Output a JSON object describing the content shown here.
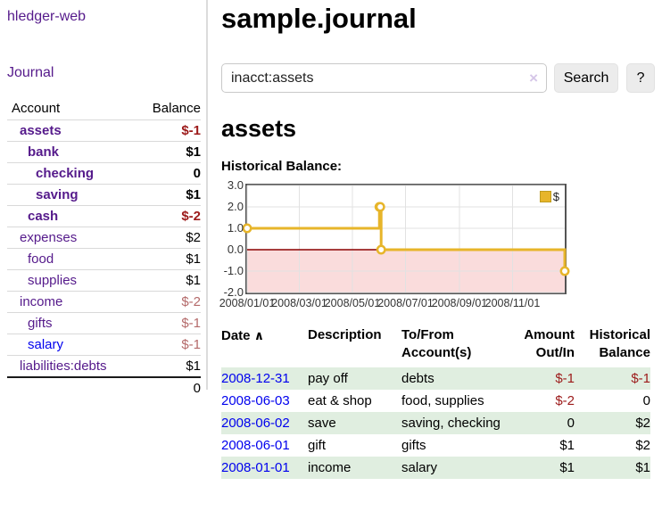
{
  "app": {
    "brand": "hledger-web"
  },
  "sidebar": {
    "journal_label": "Journal",
    "account_header": "Account",
    "balance_header": "Balance",
    "accounts": [
      {
        "name": "assets",
        "depth": 1,
        "bold": true,
        "blue": false,
        "balance": "$-1",
        "balance_class": "neg-strong"
      },
      {
        "name": "bank",
        "depth": 2,
        "bold": true,
        "blue": false,
        "balance": "$1",
        "balance_class": ""
      },
      {
        "name": "checking",
        "depth": 3,
        "bold": true,
        "blue": false,
        "balance": "0",
        "balance_class": ""
      },
      {
        "name": "saving",
        "depth": 3,
        "bold": true,
        "blue": false,
        "balance": "$1",
        "balance_class": ""
      },
      {
        "name": "cash",
        "depth": 2,
        "bold": true,
        "blue": false,
        "balance": "$-2",
        "balance_class": "neg-strong"
      },
      {
        "name": "expenses",
        "depth": 1,
        "bold": false,
        "blue": false,
        "balance": "$2",
        "balance_class": ""
      },
      {
        "name": "food",
        "depth": 2,
        "bold": false,
        "blue": false,
        "balance": "$1",
        "balance_class": ""
      },
      {
        "name": "supplies",
        "depth": 2,
        "bold": false,
        "blue": false,
        "balance": "$1",
        "balance_class": ""
      },
      {
        "name": "income",
        "depth": 1,
        "bold": false,
        "blue": false,
        "balance": "$-2",
        "balance_class": "neg-soft"
      },
      {
        "name": "gifts",
        "depth": 2,
        "bold": false,
        "blue": false,
        "balance": "$-1",
        "balance_class": "neg-soft"
      },
      {
        "name": "salary",
        "depth": 2,
        "bold": false,
        "blue": true,
        "balance": "$-1",
        "balance_class": "neg-soft"
      },
      {
        "name": "liabilities:debts",
        "depth": 1,
        "bold": false,
        "blue": false,
        "balance": "$1",
        "balance_class": ""
      }
    ],
    "total": "0"
  },
  "header": {
    "title": "sample.journal"
  },
  "search": {
    "value": "inacct:assets",
    "clear_icon": "×",
    "button_label": "Search",
    "help_label": "?"
  },
  "account_page": {
    "title": "assets",
    "chart_label": "Historical Balance:"
  },
  "chart_data": {
    "type": "line",
    "style": "step",
    "title": "Historical Balance",
    "legend": {
      "label": "$",
      "position": "top-right"
    },
    "x_start": "2008-01-01",
    "x_total_days": 365,
    "x_ticks": [
      {
        "date": "2008-01-01",
        "label": "2008/01/01"
      },
      {
        "date": "2008-03-01",
        "label": "2008/03/01"
      },
      {
        "date": "2008-05-01",
        "label": "2008/05/01"
      },
      {
        "date": "2008-07-01",
        "label": "2008/07/01"
      },
      {
        "date": "2008-09-01",
        "label": "2008/09/01"
      },
      {
        "date": "2008-11-01",
        "label": "2008/11/01"
      }
    ],
    "y_ticks": [
      {
        "value": 3,
        "label": "3.0"
      },
      {
        "value": 2,
        "label": "2.0"
      },
      {
        "value": 1,
        "label": "1.0"
      },
      {
        "value": 0,
        "label": "0.0"
      },
      {
        "value": -1,
        "label": "-1.0"
      },
      {
        "value": -2,
        "label": "-2.0"
      }
    ],
    "ylim": [
      -2,
      3
    ],
    "grid": true,
    "series": [
      {
        "name": "$",
        "color": "#e7b52a",
        "points": [
          {
            "date": "2008-01-01",
            "value": 1
          },
          {
            "date": "2008-06-01",
            "value": 2
          },
          {
            "date": "2008-06-02",
            "value": 2
          },
          {
            "date": "2008-06-03",
            "value": 0
          },
          {
            "date": "2008-12-31",
            "value": -1
          }
        ]
      }
    ],
    "colors": {
      "grid": "#e2e2e2",
      "border": "#545454",
      "negative_region": "#fadcdc",
      "zero_line": "#8b0000",
      "marker_fill": "#ffffff"
    }
  },
  "register": {
    "columns": {
      "date": "Date",
      "date_sort_indicator": "∧",
      "description": "Description",
      "accounts": "To/From Account(s)",
      "amount": "Amount Out/In",
      "balance": "Historical Balance"
    },
    "rows": [
      {
        "date": "2008-12-31",
        "description": "pay off",
        "accounts": "debts",
        "amount": "$-1",
        "amount_negative": true,
        "balance": "$-1",
        "balance_negative": true,
        "shaded": true
      },
      {
        "date": "2008-06-03",
        "description": "eat & shop",
        "accounts": "food, supplies",
        "amount": "$-2",
        "amount_negative": true,
        "balance": "0",
        "balance_negative": false,
        "shaded": false
      },
      {
        "date": "2008-06-02",
        "description": "save",
        "accounts": "saving, checking",
        "amount": "0",
        "amount_negative": false,
        "balance": "$2",
        "balance_negative": false,
        "shaded": true
      },
      {
        "date": "2008-06-01",
        "description": "gift",
        "accounts": "gifts",
        "amount": "$1",
        "amount_negative": false,
        "balance": "$2",
        "balance_negative": false,
        "shaded": false
      },
      {
        "date": "2008-01-01",
        "description": "income",
        "accounts": "salary",
        "amount": "$1",
        "amount_negative": false,
        "balance": "$1",
        "balance_negative": false,
        "shaded": true
      }
    ]
  }
}
